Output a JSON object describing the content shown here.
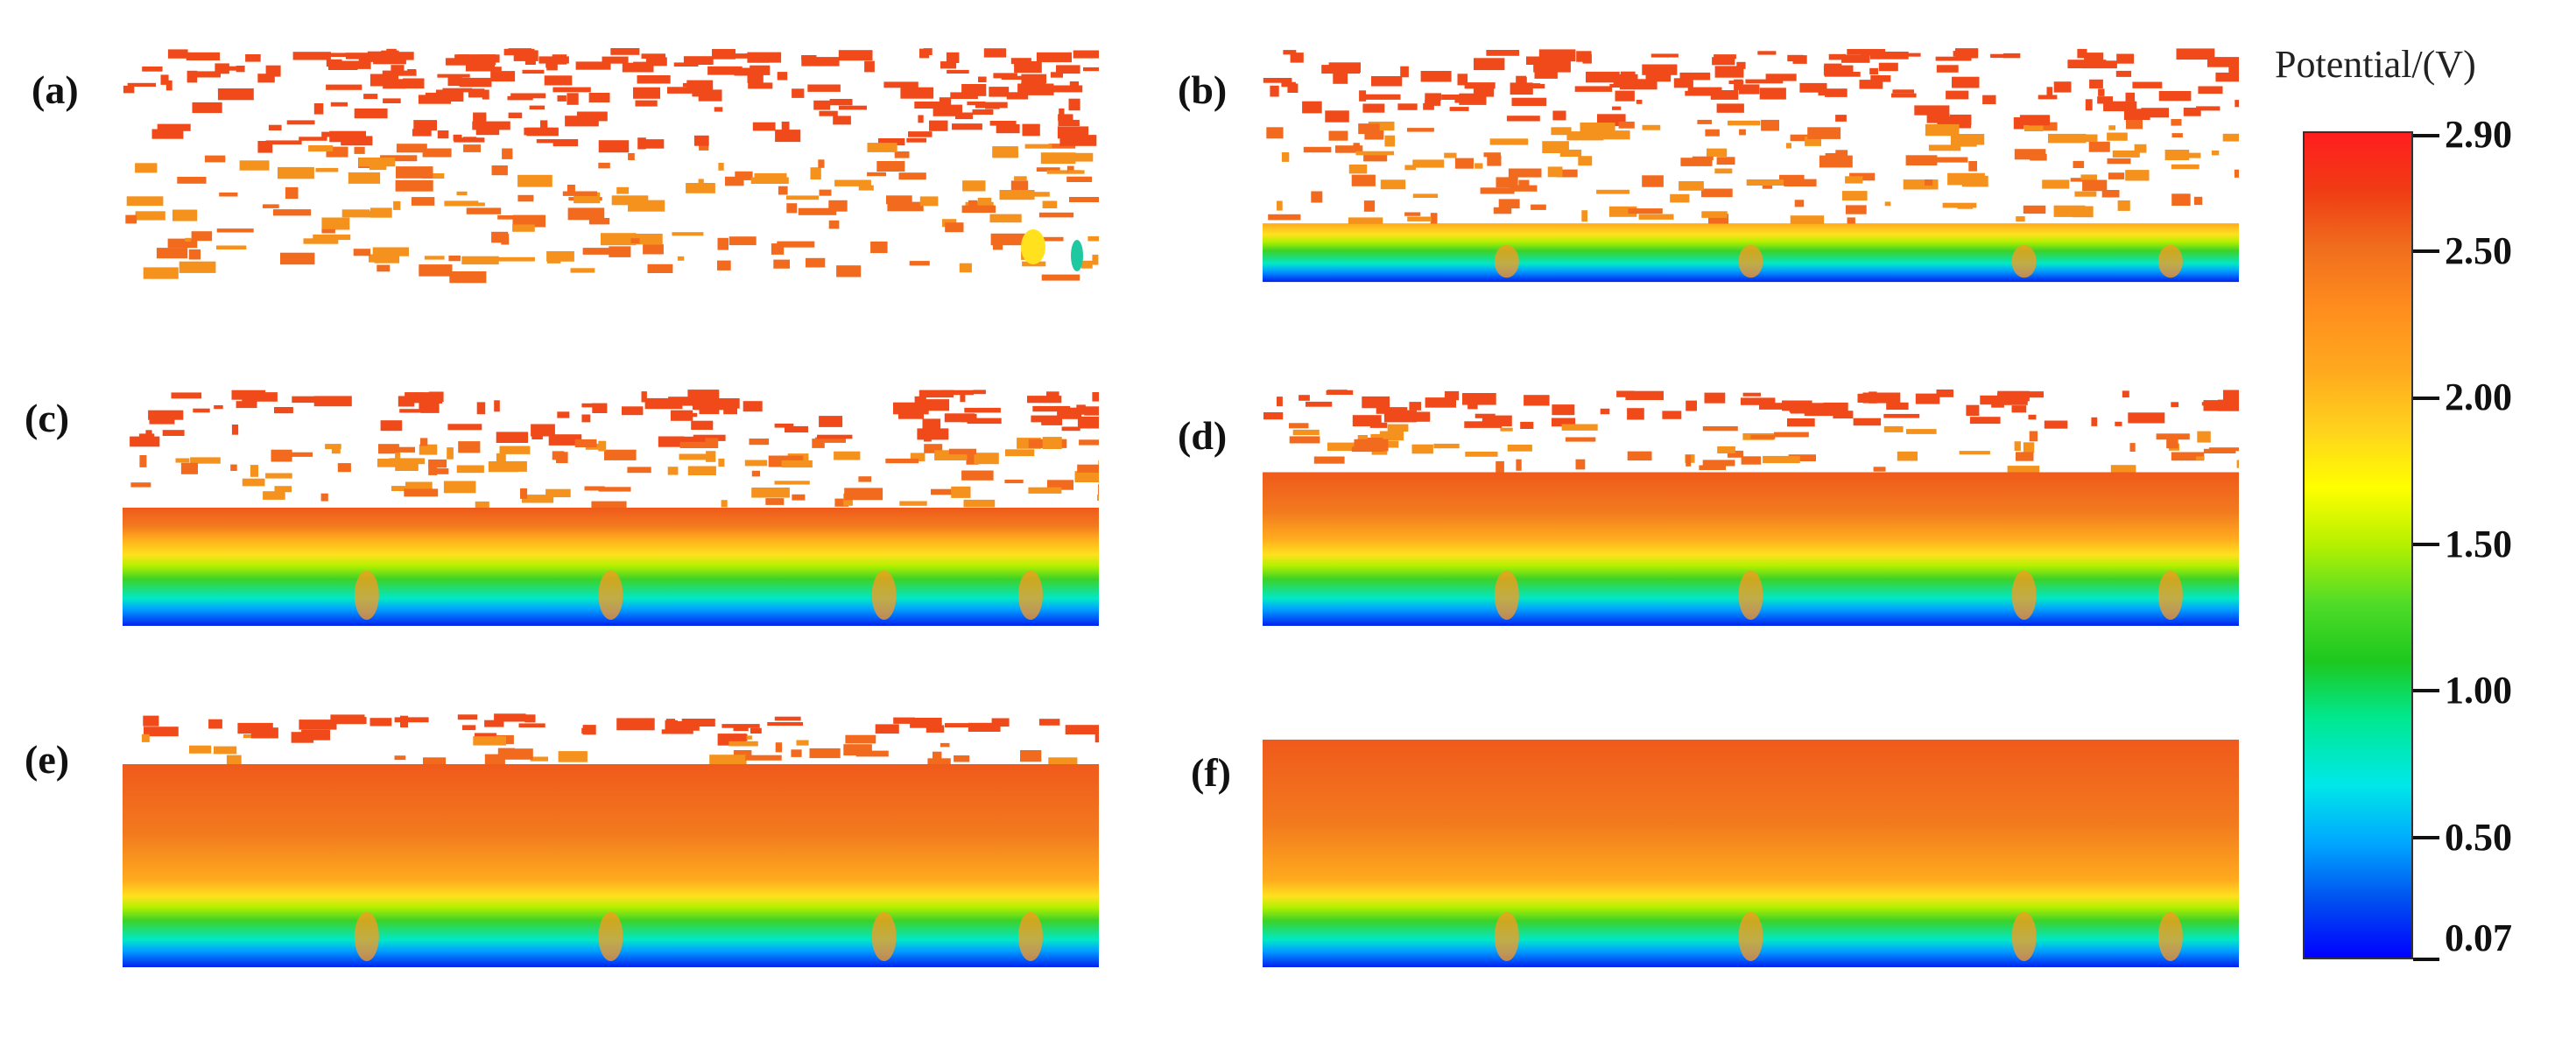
{
  "panels": [
    {
      "label": "(a)",
      "front_fraction": 0.0
    },
    {
      "label": "(b)",
      "front_fraction": 0.25
    },
    {
      "label": "(c)",
      "front_fraction": 0.5
    },
    {
      "label": "(d)",
      "front_fraction": 0.65
    },
    {
      "label": "(e)",
      "front_fraction": 0.8
    },
    {
      "label": "(f)",
      "front_fraction": 1.0
    }
  ],
  "colorbar": {
    "title": "Potential/(V)",
    "ticks": [
      "2.90",
      "2.50",
      "2.00",
      "1.50",
      "1.00",
      "0.50",
      "0.07"
    ],
    "tick_values": [
      2.9,
      2.5,
      2.0,
      1.5,
      1.0,
      0.5,
      0.07
    ],
    "min": 0.07,
    "max": 2.9,
    "colors": [
      "#0000ff",
      "#0050f0",
      "#00a8ff",
      "#00e8e8",
      "#00e890",
      "#1ec81e",
      "#50dc28",
      "#b4f000",
      "#ffff00",
      "#ffd21e",
      "#ffaa1e",
      "#ff8c1e",
      "#f06e1e",
      "#f03c14",
      "#ff1e1e"
    ]
  }
}
